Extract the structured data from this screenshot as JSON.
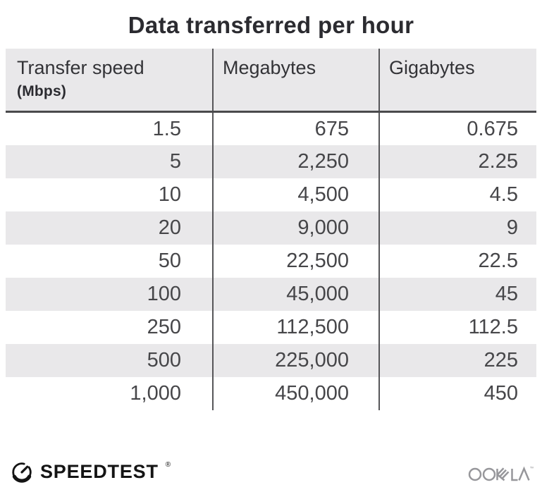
{
  "title": "Data transferred per hour",
  "chart_data": {
    "type": "table",
    "title": "Data transferred per hour",
    "header": {
      "col1_label": "Transfer speed",
      "col1_sublabel": "(Mbps)",
      "col2_label": "Megabytes",
      "col3_label": "Gigabytes"
    },
    "columns": [
      "Transfer speed (Mbps)",
      "Megabytes",
      "Gigabytes"
    ],
    "rows": [
      [
        "1.5",
        "675",
        "0.675"
      ],
      [
        "5",
        "2,250",
        "2.25"
      ],
      [
        "10",
        "4,500",
        "4.5"
      ],
      [
        "20",
        "9,000",
        "9"
      ],
      [
        "50",
        "22,500",
        "22.5"
      ],
      [
        "100",
        "45,000",
        "45"
      ],
      [
        "250",
        "112,500",
        "112.5"
      ],
      [
        "500",
        "225,000",
        "225"
      ],
      [
        "1,000",
        "450,000",
        "450"
      ]
    ],
    "mbps": [
      1.5,
      5,
      10,
      20,
      50,
      100,
      250,
      500,
      1000
    ],
    "megabytes": [
      675,
      2250,
      4500,
      9000,
      22500,
      45000,
      112500,
      225000,
      450000
    ],
    "gigabytes": [
      0.675,
      2.25,
      4.5,
      9,
      22.5,
      45,
      112.5,
      225,
      450
    ],
    "layout": {
      "alternating_row_shading": true,
      "shaded_rows": [
        2,
        4,
        6,
        8
      ]
    }
  },
  "footer": {
    "brand": "SPEEDTEST",
    "brand_mark": "®",
    "brand_icon": "speedtest-gauge-icon",
    "company": "OOKLA",
    "company_mark": "™"
  },
  "colors": {
    "background": "#ffffff",
    "header_bg": "#e9e8ea",
    "row_alt_bg": "#e9e8ea",
    "header_rule": "#4a4a4c",
    "column_divider": "#565659",
    "title_text": "#2b2b30",
    "body_text": "#464649",
    "speedtest_black": "#141414",
    "ookla_gray": "#97979b"
  }
}
